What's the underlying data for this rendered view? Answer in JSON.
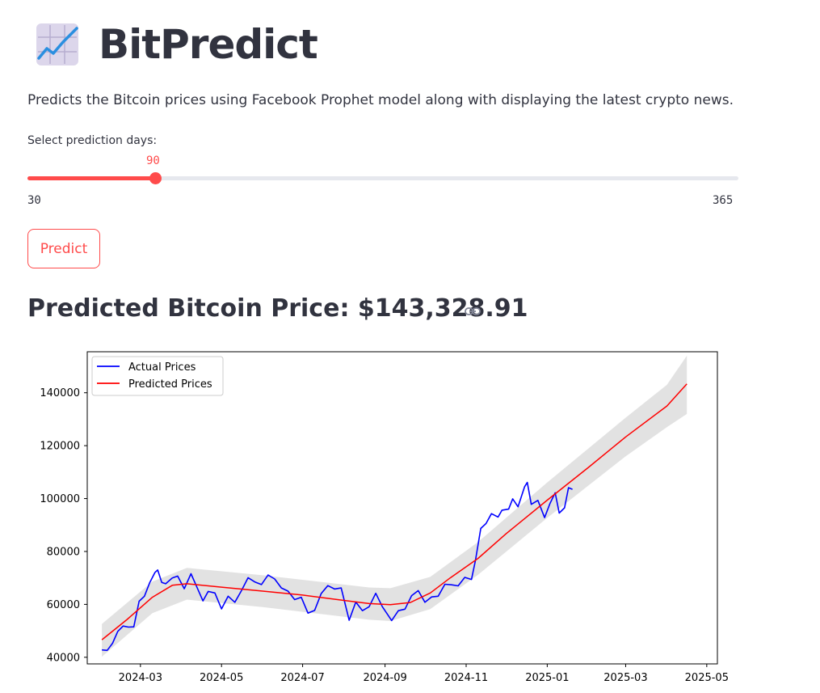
{
  "app": {
    "title": "BitPredict",
    "icon": "chart-increasing-icon",
    "description": "Predicts the Bitcoin prices using Facebook Prophet model along with displaying the latest crypto news."
  },
  "slider": {
    "label": "Select prediction days:",
    "value": 90,
    "value_text": "90",
    "min": 30,
    "max": 365,
    "min_text": "30",
    "max_text": "365",
    "color": "#ff4b4b"
  },
  "predict_button": {
    "label": "Predict"
  },
  "result": {
    "heading": "Predicted Bitcoin Price: $143,328.91",
    "link_icon": "link-icon"
  },
  "chart_data": {
    "type": "line",
    "legend_position": "top-left",
    "grid": false,
    "x_ticks": [
      "2024-03",
      "2024-05",
      "2024-07",
      "2024-09",
      "2024-11",
      "2025-01",
      "2025-03",
      "2025-05"
    ],
    "y_ticks": [
      "40000",
      "60000",
      "80000",
      "100000",
      "120000",
      "140000"
    ],
    "xlim": [
      "2024-01-21",
      "2025-05-09"
    ],
    "ylim": [
      37500,
      155500
    ],
    "series": [
      {
        "name": "Actual Prices",
        "color": "#0000ff",
        "points": [
          [
            "2024-02-01",
            42800
          ],
          [
            "2024-02-05",
            42600
          ],
          [
            "2024-02-09",
            45300
          ],
          [
            "2024-02-13",
            49800
          ],
          [
            "2024-02-17",
            51800
          ],
          [
            "2024-02-21",
            51400
          ],
          [
            "2024-02-25",
            51500
          ],
          [
            "2024-02-29",
            61200
          ],
          [
            "2024-03-04",
            63100
          ],
          [
            "2024-03-08",
            68200
          ],
          [
            "2024-03-12",
            72100
          ],
          [
            "2024-03-14",
            73000
          ],
          [
            "2024-03-17",
            68300
          ],
          [
            "2024-03-20",
            67800
          ],
          [
            "2024-03-25",
            70000
          ],
          [
            "2024-03-29",
            70700
          ],
          [
            "2024-04-03",
            65900
          ],
          [
            "2024-04-08",
            71600
          ],
          [
            "2024-04-12",
            67100
          ],
          [
            "2024-04-17",
            61300
          ],
          [
            "2024-04-21",
            64900
          ],
          [
            "2024-04-26",
            64300
          ],
          [
            "2024-05-01",
            58300
          ],
          [
            "2024-05-06",
            63100
          ],
          [
            "2024-05-11",
            60800
          ],
          [
            "2024-05-16",
            65200
          ],
          [
            "2024-05-21",
            70100
          ],
          [
            "2024-05-26",
            68500
          ],
          [
            "2024-05-31",
            67500
          ],
          [
            "2024-06-05",
            71100
          ],
          [
            "2024-06-10",
            69600
          ],
          [
            "2024-06-15",
            66200
          ],
          [
            "2024-06-20",
            65000
          ],
          [
            "2024-06-25",
            61800
          ],
          [
            "2024-06-30",
            62700
          ],
          [
            "2024-07-05",
            56700
          ],
          [
            "2024-07-10",
            57700
          ],
          [
            "2024-07-15",
            64100
          ],
          [
            "2024-07-20",
            67100
          ],
          [
            "2024-07-25",
            65800
          ],
          [
            "2024-07-30",
            66200
          ],
          [
            "2024-08-05",
            54000
          ],
          [
            "2024-08-10",
            60900
          ],
          [
            "2024-08-15",
            57600
          ],
          [
            "2024-08-20",
            59100
          ],
          [
            "2024-08-25",
            64200
          ],
          [
            "2024-08-30",
            59100
          ],
          [
            "2024-09-06",
            53900
          ],
          [
            "2024-09-11",
            57600
          ],
          [
            "2024-09-16",
            58200
          ],
          [
            "2024-09-21",
            63300
          ],
          [
            "2024-09-26",
            65200
          ],
          [
            "2024-10-01",
            60800
          ],
          [
            "2024-10-06",
            62800
          ],
          [
            "2024-10-11",
            63100
          ],
          [
            "2024-10-16",
            67600
          ],
          [
            "2024-10-21",
            67400
          ],
          [
            "2024-10-26",
            67000
          ],
          [
            "2024-10-31",
            70200
          ],
          [
            "2024-11-05",
            69400
          ],
          [
            "2024-11-08",
            76600
          ],
          [
            "2024-11-12",
            88700
          ],
          [
            "2024-11-16",
            90600
          ],
          [
            "2024-11-20",
            94300
          ],
          [
            "2024-11-25",
            93000
          ],
          [
            "2024-11-28",
            95600
          ],
          [
            "2024-12-03",
            96000
          ],
          [
            "2024-12-06",
            99900
          ],
          [
            "2024-12-10",
            96900
          ],
          [
            "2024-12-15",
            104500
          ],
          [
            "2024-12-17",
            106100
          ],
          [
            "2024-12-20",
            97800
          ],
          [
            "2024-12-25",
            99300
          ],
          [
            "2024-12-30",
            92800
          ],
          [
            "2025-01-03",
            98100
          ],
          [
            "2025-01-07",
            102200
          ],
          [
            "2025-01-10",
            94500
          ],
          [
            "2025-01-14",
            96500
          ],
          [
            "2025-01-17",
            104100
          ],
          [
            "2025-01-20",
            103500
          ]
        ]
      },
      {
        "name": "Predicted Prices",
        "color": "#ff0000",
        "points": [
          [
            "2024-02-01",
            46600
          ],
          [
            "2024-02-20",
            54300
          ],
          [
            "2024-03-10",
            62700
          ],
          [
            "2024-03-25",
            67200
          ],
          [
            "2024-04-05",
            67800
          ],
          [
            "2024-05-01",
            66500
          ],
          [
            "2024-06-01",
            65000
          ],
          [
            "2024-07-01",
            63500
          ],
          [
            "2024-08-01",
            61500
          ],
          [
            "2024-08-20",
            60300
          ],
          [
            "2024-09-05",
            59900
          ],
          [
            "2024-09-20",
            60700
          ],
          [
            "2024-10-05",
            64300
          ],
          [
            "2024-10-20",
            70000
          ],
          [
            "2024-11-10",
            77400
          ],
          [
            "2024-12-01",
            86700
          ],
          [
            "2025-01-01",
            99400
          ],
          [
            "2025-02-01",
            111800
          ],
          [
            "2025-03-01",
            123300
          ],
          [
            "2025-04-01",
            135000
          ],
          [
            "2025-04-16",
            143329
          ]
        ]
      }
    ],
    "confidence_band": {
      "color": "#d8d8d8",
      "upper": [
        [
          "2024-02-01",
          52600
        ],
        [
          "2024-03-10",
          68600
        ],
        [
          "2024-04-05",
          73800
        ],
        [
          "2024-06-01",
          71000
        ],
        [
          "2024-08-20",
          66400
        ],
        [
          "2024-09-05",
          66100
        ],
        [
          "2024-10-05",
          70400
        ],
        [
          "2024-11-10",
          83600
        ],
        [
          "2025-01-01",
          106100
        ],
        [
          "2025-03-01",
          130600
        ],
        [
          "2025-04-01",
          143000
        ],
        [
          "2025-04-16",
          154000
        ]
      ],
      "lower": [
        [
          "2024-02-01",
          40200
        ],
        [
          "2024-03-10",
          56700
        ],
        [
          "2024-04-05",
          61800
        ],
        [
          "2024-06-01",
          59000
        ],
        [
          "2024-08-20",
          54200
        ],
        [
          "2024-09-05",
          53700
        ],
        [
          "2024-10-05",
          58200
        ],
        [
          "2024-11-10",
          71200
        ],
        [
          "2025-01-01",
          92700
        ],
        [
          "2025-03-01",
          116000
        ],
        [
          "2025-04-01",
          127000
        ],
        [
          "2025-04-16",
          132000
        ]
      ]
    }
  }
}
